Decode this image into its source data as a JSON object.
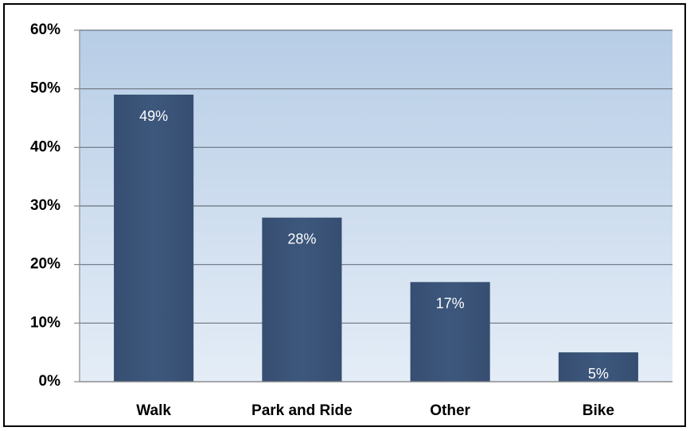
{
  "chart_data": {
    "type": "bar",
    "categories": [
      "Walk",
      "Park and Ride",
      "Other",
      "Bike"
    ],
    "values": [
      49,
      28,
      17,
      5
    ],
    "value_labels": [
      "49%",
      "28%",
      "17%",
      "5%"
    ],
    "color": "#3b5478",
    "ylim": [
      0,
      60
    ],
    "yticks": [
      {
        "value": 0,
        "label": "0%"
      },
      {
        "value": 10,
        "label": "10%"
      },
      {
        "value": 20,
        "label": "20%"
      },
      {
        "value": 30,
        "label": "30%"
      },
      {
        "value": 40,
        "label": "40%"
      },
      {
        "value": 50,
        "label": "50%"
      },
      {
        "value": 60,
        "label": "60%"
      }
    ],
    "grid": true
  }
}
